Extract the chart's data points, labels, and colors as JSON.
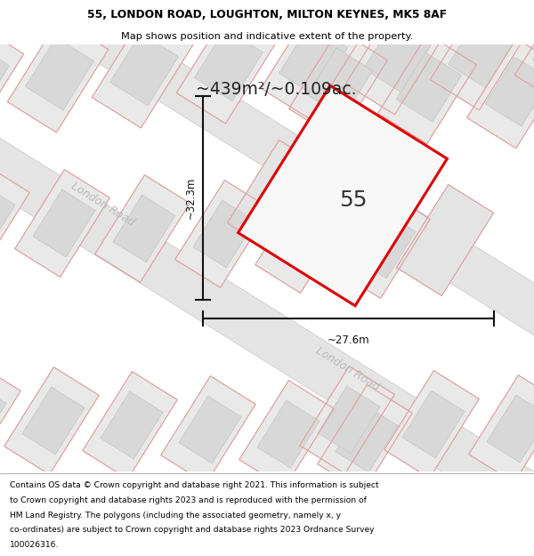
{
  "title_line1": "55, LONDON ROAD, LOUGHTON, MILTON KEYNES, MK5 8AF",
  "title_line2": "Map shows position and indicative extent of the property.",
  "area_label": "~439m²/~0.109ac.",
  "number_label": "55",
  "dim_height": "~32.3m",
  "dim_width": "~27.6m",
  "road_label1": "London Road",
  "road_label2": "London Road",
  "footer_lines": [
    "Contains OS data © Crown copyright and database right 2021. This information is subject",
    "to Crown copyright and database rights 2023 and is reproduced with the permission of",
    "HM Land Registry. The polygons (including the associated geometry, namely x, y",
    "co-ordinates) are subject to Crown copyright and database rights 2023 Ordnance Survey",
    "100026316."
  ],
  "map_bg": "#f2f2f2",
  "road_fill": "#e2e2e2",
  "road_edge": "#c8c8c8",
  "plot_outline_fill": "#ececec",
  "plot_outline_edge": "#c8c8c8",
  "building_fill": "#d8d8d8",
  "building_edge": "#c0c0c0",
  "property_fill": "#f8f8f8",
  "property_stroke": "#dd0000",
  "dim_color": "#111111",
  "road_text_color": "#bbbbbb",
  "area_text_color": "#222222",
  "num_text_color": "#333333",
  "map_road_pink": "#e8b0b0",
  "map_road_pink_edge": "#d89090"
}
